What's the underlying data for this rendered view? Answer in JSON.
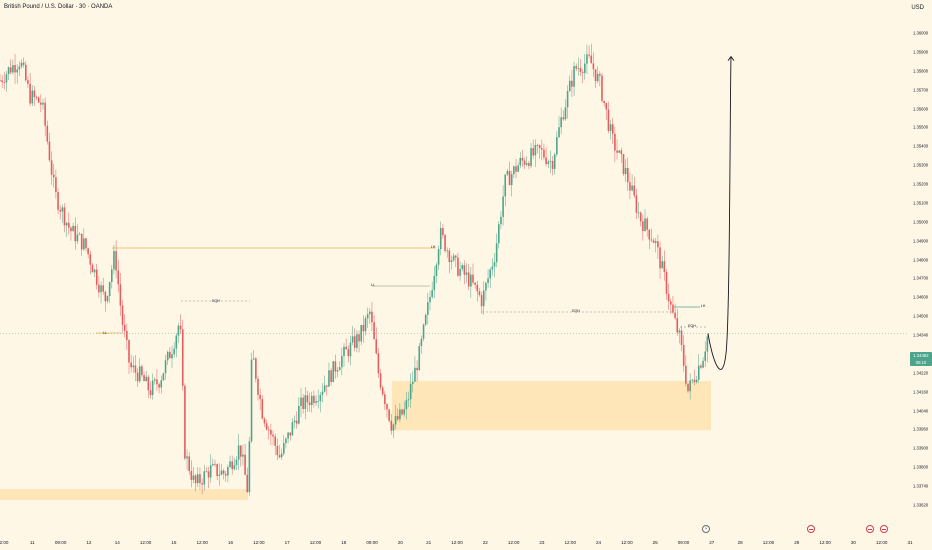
{
  "header": {
    "title": "British Pound / U.S. Dollar · 30 · OANDA",
    "currency": "USD"
  },
  "colors": {
    "background": "#fff7e6",
    "up": "#4ba58a",
    "down": "#e25e5e",
    "zone": "#ffe3b4",
    "level_line": "#f5b04a",
    "projection": "#131722"
  },
  "price_badge": {
    "price": "1.34492",
    "countdown": "05:10"
  },
  "level_labels": {
    "eqh_left": "EQH",
    "eqh_right": "EQH",
    "lh_mid": "LH",
    "lh_right": "LH",
    "ll_left": "LL",
    "ll_mid": "LL",
    "eqh_small": "EQH"
  },
  "events": {
    "flash_label": "⚡"
  },
  "chart_data": {
    "type": "candlestick",
    "title": "British Pound / U.S. Dollar · 30 · OANDA",
    "ylabel": "USD",
    "ylim": [
      1.3362,
      1.3602
    ],
    "y_ticks": [
      "1.36000",
      "1.35900",
      "1.35800",
      "1.35700",
      "1.35600",
      "1.35500",
      "1.35400",
      "1.35300",
      "1.35200",
      "1.35100",
      "1.35000",
      "1.34900",
      "1.34800",
      "1.34700",
      "1.34600",
      "1.34500",
      "1.34340",
      "1.34280",
      "1.34220",
      "1.34160",
      "1.34040",
      "1.33960",
      "1.33900",
      "1.33800",
      "1.33740",
      "1.33620"
    ],
    "x_ticks": [
      "2:00",
      "11",
      "09:00",
      "12",
      "14",
      "12:00",
      "15",
      "12:00",
      "16",
      "12:00",
      "17",
      "12:00",
      "18",
      "09:00",
      "20",
      "21",
      "12:00",
      "22",
      "12:00",
      "23",
      "12:00",
      "24",
      "12:00",
      "25",
      "09:00",
      "27",
      "28",
      "12:00",
      "29",
      "12:00",
      "30",
      "12:00",
      "31"
    ],
    "current_price": 1.34492,
    "path": [
      [
        0,
        1.3578
      ],
      [
        10,
        1.3584
      ],
      [
        20,
        1.3588
      ],
      [
        30,
        1.357
      ],
      [
        42,
        1.3566
      ],
      [
        55,
        1.352
      ],
      [
        70,
        1.3502
      ],
      [
        85,
        1.3494
      ],
      [
        95,
        1.348
      ],
      [
        105,
        1.3466
      ],
      [
        115,
        1.349
      ],
      [
        122,
        1.3456
      ],
      [
        130,
        1.3432
      ],
      [
        140,
        1.3428
      ],
      [
        150,
        1.342
      ],
      [
        160,
        1.3426
      ],
      [
        172,
        1.3442
      ],
      [
        180,
        1.3456
      ],
      [
        185,
        1.3388
      ],
      [
        195,
        1.3372
      ],
      [
        210,
        1.338
      ],
      [
        225,
        1.3378
      ],
      [
        240,
        1.3392
      ],
      [
        248,
        1.3368
      ],
      [
        252,
        1.344
      ],
      [
        262,
        1.341
      ],
      [
        280,
        1.3386
      ],
      [
        300,
        1.3412
      ],
      [
        320,
        1.342
      ],
      [
        340,
        1.3436
      ],
      [
        360,
        1.3448
      ],
      [
        370,
        1.346
      ],
      [
        378,
        1.343
      ],
      [
        392,
        1.3402
      ],
      [
        405,
        1.341
      ],
      [
        420,
        1.344
      ],
      [
        430,
        1.3468
      ],
      [
        440,
        1.35
      ],
      [
        455,
        1.3484
      ],
      [
        470,
        1.3476
      ],
      [
        482,
        1.3466
      ],
      [
        495,
        1.349
      ],
      [
        505,
        1.3526
      ],
      [
        520,
        1.3536
      ],
      [
        540,
        1.3542
      ],
      [
        552,
        1.3536
      ],
      [
        562,
        1.356
      ],
      [
        575,
        1.3584
      ],
      [
        590,
        1.3588
      ],
      [
        600,
        1.3576
      ],
      [
        612,
        1.3548
      ],
      [
        625,
        1.3532
      ],
      [
        640,
        1.3508
      ],
      [
        655,
        1.3496
      ],
      [
        665,
        1.3476
      ],
      [
        672,
        1.346
      ],
      [
        680,
        1.3446
      ],
      [
        688,
        1.342
      ],
      [
        695,
        1.3428
      ],
      [
        703,
        1.3438
      ],
      [
        708,
        1.3449
      ]
    ],
    "zones": [
      {
        "from": 1.3425,
        "to": 1.34
      },
      {
        "from": 1.3385,
        "to": 1.338
      }
    ],
    "levels": [
      {
        "label": "LH",
        "price": 1.349
      },
      {
        "label": "EQH",
        "price": 1.3469
      },
      {
        "label": "LL",
        "price": 1.3475
      },
      {
        "label": "EQH",
        "price": 1.3463
      },
      {
        "label": "LH",
        "price": 1.3467
      },
      {
        "label": "EQH",
        "price": 1.346
      }
    ],
    "projection": {
      "end_price": 1.359
    },
    "grid": false,
    "legend": "none"
  }
}
